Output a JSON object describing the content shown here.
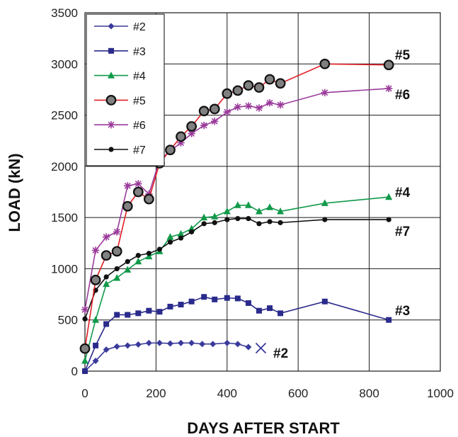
{
  "chart_data": {
    "type": "line",
    "title": "",
    "xlabel": "DAYS AFTER START",
    "ylabel": "LOAD (kN)",
    "xlim": [
      0,
      1000
    ],
    "ylim": [
      0,
      3500
    ],
    "x_ticks": [
      "0",
      "200",
      "400",
      "600",
      "800",
      "1000"
    ],
    "y_ticks": [
      "0",
      "500",
      "1000",
      "1500",
      "2000",
      "2500",
      "3000",
      "3500"
    ],
    "grid": true,
    "legend_position": "top-left",
    "series": [
      {
        "name": "#2",
        "color": "#3a3a9c",
        "marker": "diamond",
        "end_label": "#2",
        "x": [
          0,
          30,
          60,
          90,
          120,
          150,
          180,
          210,
          240,
          270,
          300,
          330,
          360,
          400,
          430,
          460
        ],
        "y": [
          0,
          100,
          210,
          240,
          250,
          260,
          275,
          275,
          270,
          275,
          275,
          265,
          265,
          275,
          265,
          235
        ],
        "final_marker": {
          "x": 495,
          "y": 225,
          "shape": "x"
        }
      },
      {
        "name": "#3",
        "color": "#2a2a8c",
        "marker": "square",
        "end_label": "#3",
        "x": [
          0,
          30,
          60,
          90,
          120,
          150,
          180,
          210,
          240,
          270,
          300,
          335,
          365,
          400,
          430,
          460,
          490,
          520,
          550,
          675,
          855
        ],
        "y": [
          0,
          250,
          460,
          550,
          550,
          565,
          590,
          580,
          630,
          650,
          680,
          725,
          700,
          715,
          710,
          665,
          590,
          615,
          565,
          680,
          500
        ]
      },
      {
        "name": "#4",
        "color": "#109a4a",
        "marker": "triangle",
        "end_label": "#4",
        "x": [
          0,
          30,
          60,
          90,
          120,
          150,
          180,
          210,
          240,
          270,
          300,
          335,
          365,
          400,
          430,
          460,
          490,
          520,
          550,
          675,
          855
        ],
        "y": [
          100,
          500,
          850,
          910,
          990,
          1070,
          1120,
          1170,
          1310,
          1340,
          1390,
          1500,
          1510,
          1560,
          1620,
          1620,
          1560,
          1600,
          1560,
          1640,
          1700
        ]
      },
      {
        "name": "#5",
        "color": "#e01f26",
        "marker": "big-circle",
        "end_label": "#5",
        "x": [
          0,
          30,
          60,
          90,
          120,
          150,
          180,
          210,
          240,
          270,
          300,
          335,
          365,
          400,
          430,
          460,
          490,
          520,
          550,
          675,
          855
        ],
        "y": [
          220,
          890,
          1130,
          1170,
          1610,
          1750,
          1680,
          2030,
          2160,
          2290,
          2390,
          2540,
          2560,
          2710,
          2740,
          2790,
          2770,
          2850,
          2810,
          3000,
          2990
        ]
      },
      {
        "name": "#6",
        "color": "#9a3a9a",
        "marker": "star",
        "end_label": "#6",
        "x": [
          0,
          30,
          60,
          90,
          120,
          150,
          180,
          210,
          240,
          270,
          300,
          335,
          365,
          400,
          430,
          460,
          490,
          520,
          550,
          675,
          855
        ],
        "y": [
          600,
          1180,
          1310,
          1360,
          1810,
          1830,
          1730,
          2060,
          2150,
          2230,
          2320,
          2400,
          2440,
          2530,
          2580,
          2590,
          2570,
          2620,
          2600,
          2720,
          2760
        ]
      },
      {
        "name": "#7",
        "color": "#111111",
        "marker": "circle",
        "end_label": "#7",
        "x": [
          0,
          30,
          60,
          90,
          120,
          150,
          180,
          210,
          240,
          270,
          300,
          335,
          365,
          400,
          430,
          460,
          490,
          520,
          550,
          675,
          855
        ],
        "y": [
          510,
          790,
          920,
          1000,
          1070,
          1130,
          1150,
          1190,
          1260,
          1300,
          1360,
          1440,
          1450,
          1480,
          1490,
          1490,
          1440,
          1460,
          1450,
          1480,
          1480
        ]
      }
    ]
  }
}
